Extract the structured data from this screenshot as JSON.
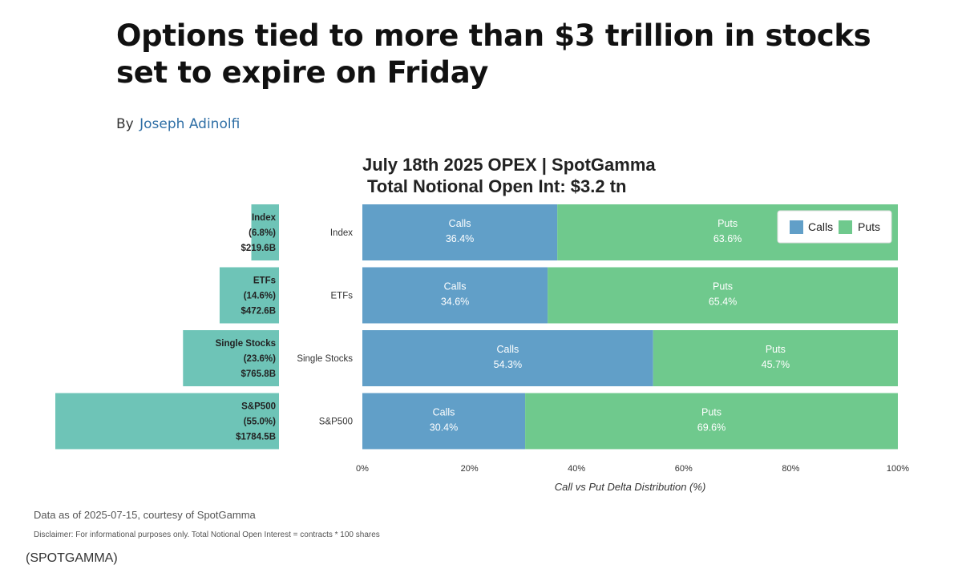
{
  "article": {
    "headline": "Options tied to more than $3 trillion in stocks set to expire on Friday",
    "by_label": "By",
    "author": "Joseph Adinolfi",
    "image_credit": "(SPOTGAMMA)"
  },
  "colors": {
    "calls": "#619fc8",
    "puts": "#6fc98d",
    "notional_bar": "#6ec4b7",
    "text_dark": "#222222",
    "text_muted": "#555555"
  },
  "chart_data": {
    "type": "bar",
    "orientation": "horizontal",
    "stacked": true,
    "title": "July 18th 2025 OPEX | SpotGamma",
    "subtitle": "Total Notional Open Int: $3.2 tn",
    "xlabel": "Call vs Put Delta Distribution (%)",
    "xlim": [
      0,
      100
    ],
    "x_ticks": [
      "0%",
      "20%",
      "40%",
      "60%",
      "80%",
      "100%"
    ],
    "x_tick_values": [
      0,
      20,
      40,
      60,
      80,
      100
    ],
    "categories": [
      "Index",
      "ETFs",
      "Single Stocks",
      "S&P500"
    ],
    "series": [
      {
        "name": "Calls",
        "values": [
          36.4,
          34.6,
          54.3,
          30.4
        ],
        "labels": [
          "36.4%",
          "34.6%",
          "54.3%",
          "30.4%"
        ]
      },
      {
        "name": "Puts",
        "values": [
          63.6,
          65.4,
          45.7,
          69.6
        ],
        "labels": [
          "63.6%",
          "65.4%",
          "45.7%",
          "69.6%"
        ]
      }
    ],
    "legend": [
      "Calls",
      "Puts"
    ],
    "legend_position": "top-right",
    "notional": {
      "values_billions": [
        219.6,
        472.6,
        765.8,
        1784.5
      ],
      "value_labels": [
        "$219.6B",
        "$472.6B",
        "$765.8B",
        "$1784.5B"
      ],
      "share_labels": [
        "(6.8%)",
        "(14.6%)",
        "(23.6%)",
        "(55.0%)"
      ],
      "share_percent": [
        6.8,
        14.6,
        23.6,
        55.0
      ]
    },
    "footnote": "Data as of 2025-07-15, courtesy of SpotGamma",
    "disclaimer": "Disclaimer: For informational purposes only. Total Notional Open Interest = contracts * 100 shares"
  }
}
